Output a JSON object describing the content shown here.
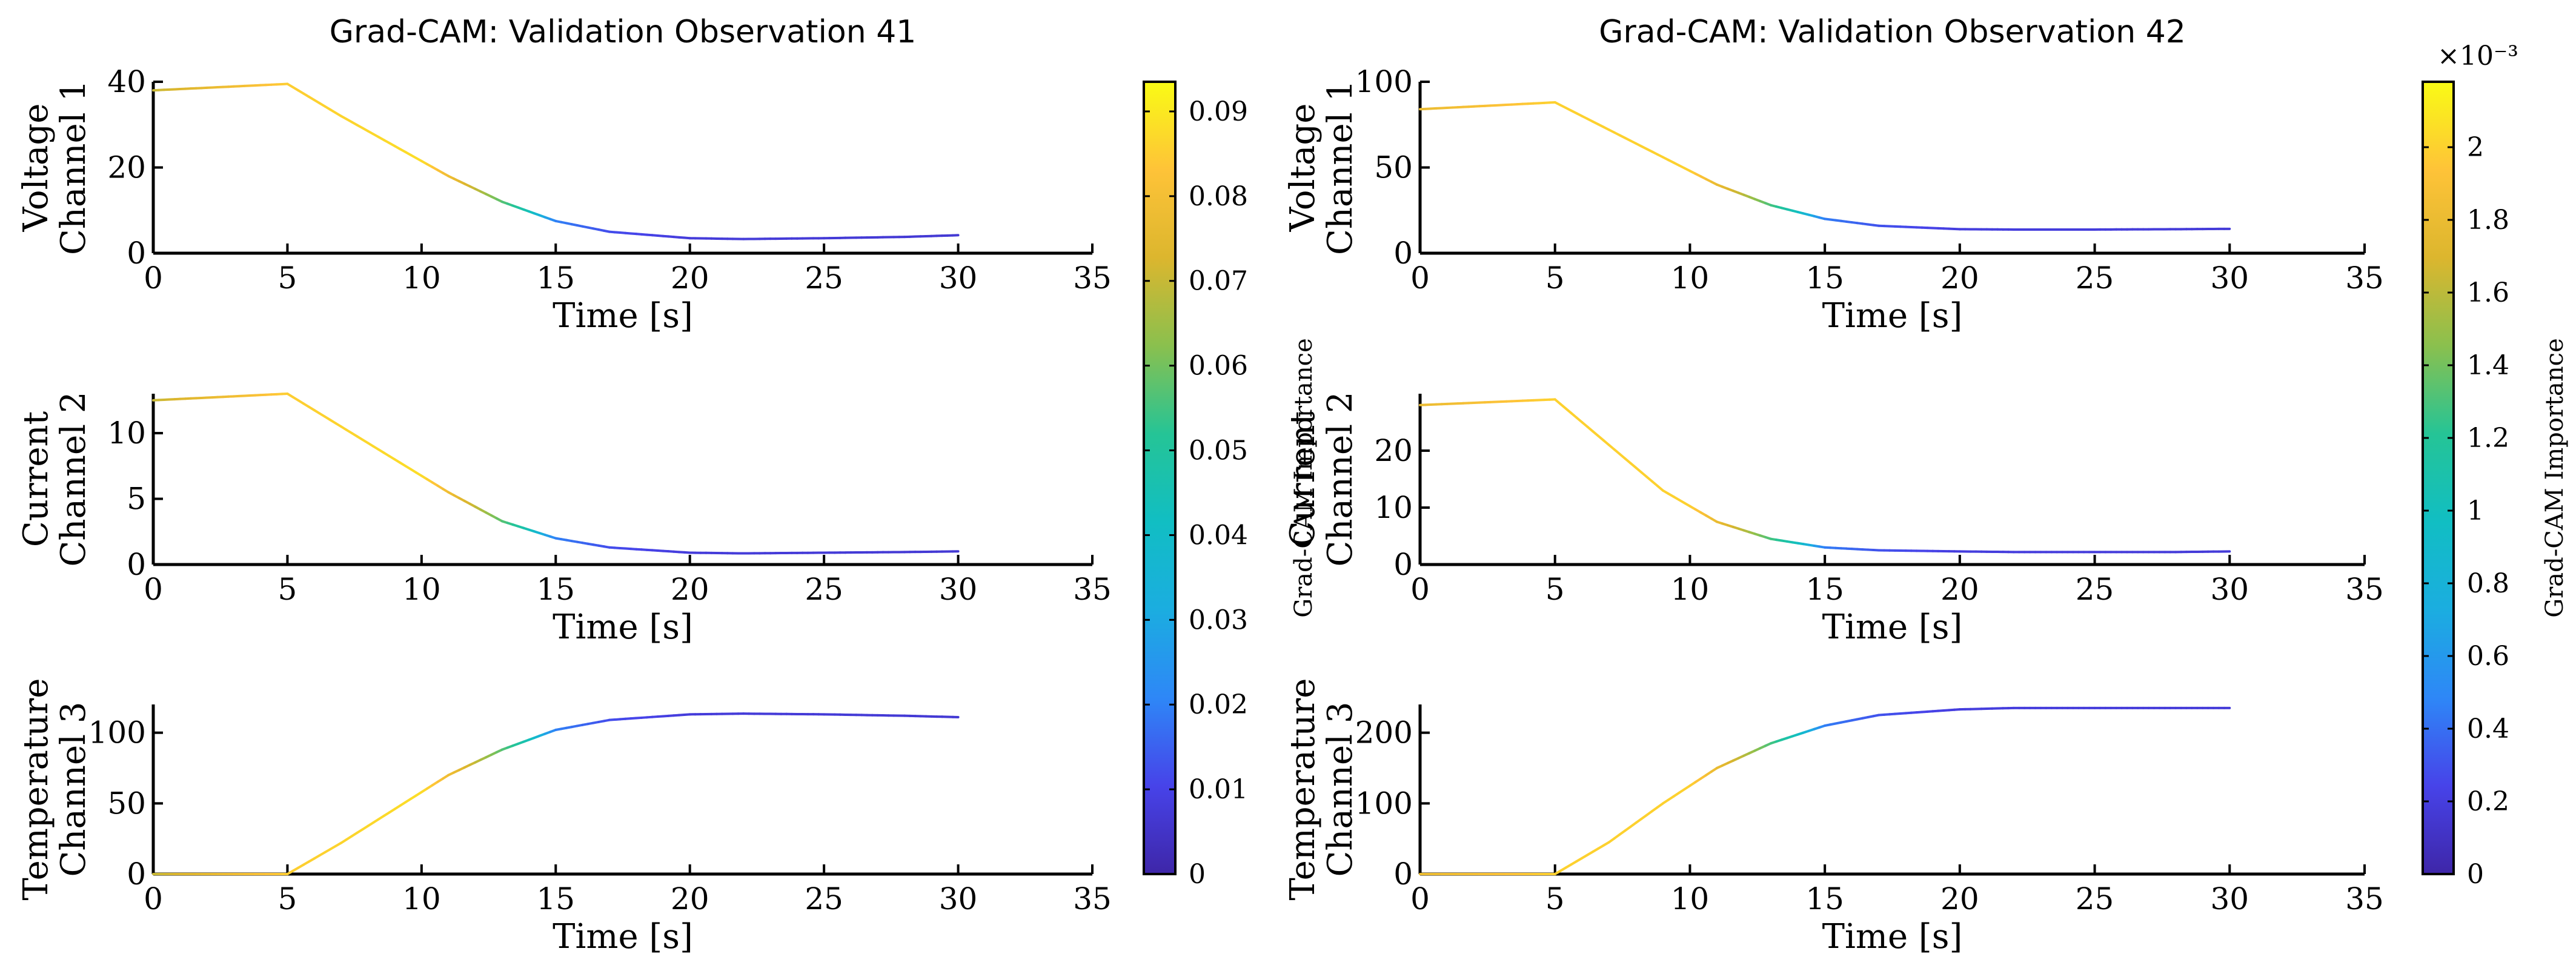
{
  "colormap": [
    "#3e26a8",
    "#4743e9",
    "#2e87f7",
    "#1bade0",
    "#11bec3",
    "#25c496",
    "#8ac04e",
    "#dcb62e",
    "#fec338",
    "#f9fb15"
  ],
  "chart_data": [
    {
      "type": "line",
      "title": "Grad-CAM: Validation Observation 41",
      "colorbar": {
        "label": "Grad-CAM Importance",
        "ticks": [
          "0",
          "0.01",
          "0.02",
          "0.03",
          "0.04",
          "0.05",
          "0.06",
          "0.07",
          "0.08",
          "0.09"
        ],
        "tick_values": [
          0,
          0.01,
          0.02,
          0.03,
          0.04,
          0.05,
          0.06,
          0.07,
          0.08,
          0.09
        ],
        "range": [
          0,
          0.0935
        ],
        "exponent": ""
      },
      "subplots": [
        {
          "ylabel": [
            "Voltage",
            "Channel 1"
          ],
          "xlabel": "Time [s]",
          "xlim": [
            0,
            35
          ],
          "xticks": [
            "0",
            "5",
            "10",
            "15",
            "20",
            "25",
            "30",
            "35"
          ],
          "ylim": [
            0,
            40
          ],
          "yticks": [
            0,
            20,
            40
          ],
          "x": [
            0,
            5,
            7,
            9,
            11,
            13,
            15,
            17,
            20,
            22,
            25,
            28,
            30
          ],
          "y": [
            38,
            39.5,
            32,
            25,
            18,
            12,
            7.5,
            5,
            3.5,
            3.3,
            3.5,
            3.8,
            4.2
          ]
        },
        {
          "ylabel": [
            "Current",
            "Channel 2"
          ],
          "xlabel": "Time [s]",
          "xlim": [
            0,
            35
          ],
          "xticks": [
            "0",
            "5",
            "10",
            "15",
            "20",
            "25",
            "30",
            "35"
          ],
          "ylim": [
            0,
            13
          ],
          "yticks": [
            0,
            5,
            10
          ],
          "x": [
            0,
            5,
            7,
            9,
            11,
            13,
            15,
            17,
            20,
            22,
            25,
            28,
            30
          ],
          "y": [
            12.5,
            13,
            10.5,
            8,
            5.5,
            3.3,
            2,
            1.3,
            0.9,
            0.85,
            0.9,
            0.95,
            1.0
          ]
        },
        {
          "ylabel": [
            "Temperature",
            "Channel 3"
          ],
          "xlabel": "Time [s]",
          "xlim": [
            0,
            35
          ],
          "xticks": [
            "0",
            "5",
            "10",
            "15",
            "20",
            "25",
            "30",
            "35"
          ],
          "ylim": [
            0,
            120
          ],
          "yticks": [
            0,
            50,
            100
          ],
          "x": [
            0,
            5,
            7,
            9,
            11,
            13,
            15,
            17,
            20,
            22,
            25,
            28,
            30
          ],
          "y": [
            0,
            0,
            22,
            46,
            70,
            88,
            102,
            109,
            113,
            113.5,
            113,
            112,
            111
          ]
        }
      ],
      "importance": {
        "x": [
          0,
          5,
          10,
          12,
          14,
          15,
          17,
          20,
          30
        ],
        "v": [
          0.07,
          0.085,
          0.088,
          0.07,
          0.045,
          0.02,
          0.012,
          0.008,
          0.007
        ]
      }
    },
    {
      "type": "line",
      "title": "Grad-CAM: Validation Observation 42",
      "colorbar": {
        "label": "Grad-CAM Importance",
        "ticks": [
          "0",
          "0.2",
          "0.4",
          "0.6",
          "0.8",
          "1",
          "1.2",
          "1.4",
          "1.6",
          "1.8",
          "2"
        ],
        "tick_values": [
          0,
          0.2,
          0.4,
          0.6,
          0.8,
          1,
          1.2,
          1.4,
          1.6,
          1.8,
          2
        ],
        "range": [
          0,
          2.18
        ],
        "exponent": "×10⁻³"
      },
      "subplots": [
        {
          "ylabel": [
            "Voltage",
            "Channel 1"
          ],
          "xlabel": "Time [s]",
          "xlim": [
            0,
            35
          ],
          "xticks": [
            "0",
            "5",
            "10",
            "15",
            "20",
            "25",
            "30",
            "35"
          ],
          "ylim": [
            0,
            100
          ],
          "yticks": [
            0,
            50,
            100
          ],
          "x": [
            0,
            5,
            7,
            9,
            11,
            13,
            15,
            17,
            20,
            22,
            25,
            28,
            30
          ],
          "y": [
            84,
            88,
            72,
            56,
            40,
            28,
            20,
            16,
            14,
            13.8,
            13.8,
            14,
            14.2
          ]
        },
        {
          "ylabel": [
            "Current",
            "Channel 2"
          ],
          "xlabel": "Time [s]",
          "xlim": [
            0,
            35
          ],
          "xticks": [
            "0",
            "5",
            "10",
            "15",
            "20",
            "25",
            "30",
            "35"
          ],
          "ylim": [
            0,
            30
          ],
          "yticks": [
            0,
            10,
            20
          ],
          "x": [
            0,
            5,
            7,
            9,
            11,
            13,
            15,
            17,
            20,
            22,
            25,
            28,
            30
          ],
          "y": [
            28,
            29,
            21,
            13,
            7.5,
            4.5,
            3,
            2.5,
            2.3,
            2.2,
            2.2,
            2.2,
            2.3
          ]
        },
        {
          "ylabel": [
            "Temperature",
            "Channel 3"
          ],
          "xlabel": "Time [s]",
          "xlim": [
            0,
            35
          ],
          "xticks": [
            "0",
            "5",
            "10",
            "15",
            "20",
            "25",
            "30",
            "35"
          ],
          "ylim": [
            0,
            240
          ],
          "yticks": [
            0,
            100,
            200
          ],
          "x": [
            0,
            5,
            7,
            9,
            11,
            13,
            15,
            17,
            20,
            22,
            25,
            28,
            30
          ],
          "y": [
            0,
            0,
            45,
            100,
            150,
            185,
            210,
            225,
            233,
            235,
            235,
            235,
            235
          ]
        }
      ],
      "importance": {
        "x": [
          0,
          5,
          10,
          12,
          14,
          15,
          17,
          20,
          30
        ],
        "v": [
          1.8,
          2.0,
          2.0,
          1.6,
          1.0,
          0.45,
          0.3,
          0.2,
          0.18
        ]
      }
    }
  ]
}
